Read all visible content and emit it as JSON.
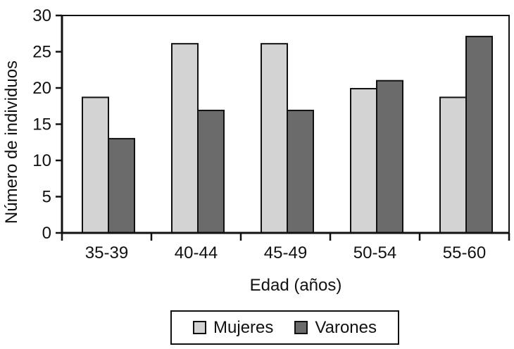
{
  "chart_data": {
    "type": "bar",
    "title": "",
    "categories": [
      "35-39",
      "40-44",
      "45-49",
      "50-54",
      "55-60"
    ],
    "series": [
      {
        "name": "Mujeres",
        "color": "#d3d3d3",
        "values": [
          18.7,
          26.1,
          26.1,
          19.9,
          18.7
        ]
      },
      {
        "name": "Varones",
        "color": "#6b6b6b",
        "values": [
          13,
          16.9,
          16.9,
          21,
          27.1
        ]
      }
    ],
    "xlabel": "Edad (años)",
    "ylabel": "Número de individuos",
    "ylim": [
      0,
      30
    ],
    "yticks": [
      0,
      5,
      10,
      15,
      20,
      25,
      30
    ],
    "grid": false,
    "legend_position": "bottom-box",
    "bar_border_color": "#111111",
    "axis_color": "#111111",
    "background_color": "#ffffff"
  }
}
